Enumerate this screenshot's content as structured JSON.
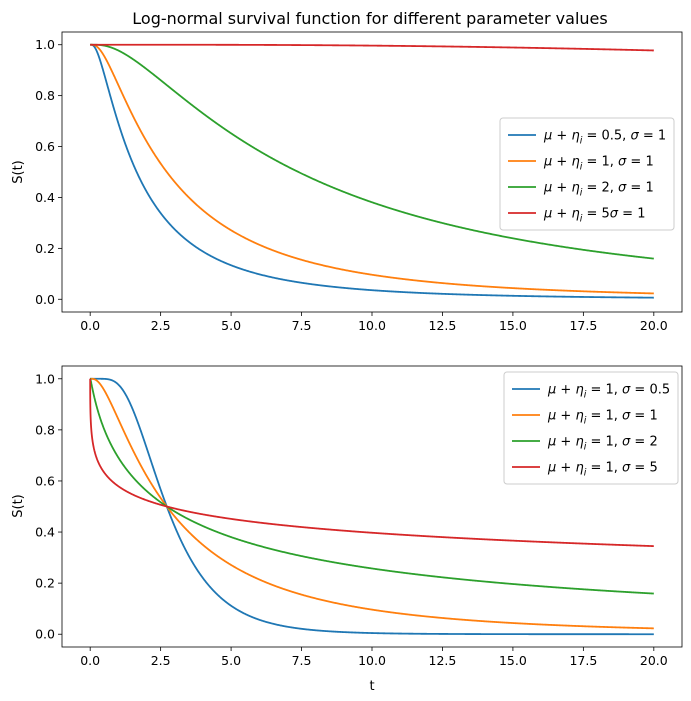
{
  "chart_data": [
    {
      "type": "line",
      "title": "Log-normal survival function for different parameter values",
      "xlabel": "",
      "ylabel": "S(t)",
      "xlim": [
        -1,
        21
      ],
      "ylim": [
        -0.05,
        1.05
      ],
      "xticks": [
        0,
        2.5,
        5,
        7.5,
        10,
        12.5,
        15,
        17.5,
        20
      ],
      "xtick_labels": [
        "0.0",
        "2.5",
        "5.0",
        "7.5",
        "10.0",
        "12.5",
        "15.0",
        "17.5",
        "20.0"
      ],
      "yticks": [
        0,
        0.2,
        0.4,
        0.6,
        0.8,
        1.0
      ],
      "ytick_labels": [
        "0.0",
        "0.2",
        "0.4",
        "0.6",
        "0.8",
        "1.0"
      ],
      "grid": false,
      "legend": "center-right",
      "series": [
        {
          "name": "μ + η_i = 0.5, σ = 1",
          "name_math": [
            "μ",
            " + ",
            "η",
            "i",
            " = 0.5, ",
            "σ",
            " = 1"
          ],
          "color": "#1f77b4",
          "mu": 0.5,
          "sigma": 1
        },
        {
          "name": "μ + η_i = 1, σ = 1",
          "name_math": [
            "μ",
            " + ",
            "η",
            "i",
            " = 1, ",
            "σ",
            " = 1"
          ],
          "color": "#ff7f0e",
          "mu": 1,
          "sigma": 1
        },
        {
          "name": "μ + η_i = 2, σ = 1",
          "name_math": [
            "μ",
            " + ",
            "η",
            "i",
            " = 2, ",
            "σ",
            " = 1"
          ],
          "color": "#2ca02c",
          "mu": 2,
          "sigma": 1
        },
        {
          "name": "μ + η_i = 5σ = 1",
          "name_math": [
            "μ",
            " + ",
            "η",
            "i",
            " = 5",
            "σ",
            " = 1"
          ],
          "color": "#d62728",
          "mu": 5,
          "sigma": 1
        }
      ]
    },
    {
      "type": "line",
      "title": "",
      "xlabel": "t",
      "ylabel": "S(t)",
      "xlim": [
        -1,
        21
      ],
      "ylim": [
        -0.05,
        1.05
      ],
      "xticks": [
        0,
        2.5,
        5,
        7.5,
        10,
        12.5,
        15,
        17.5,
        20
      ],
      "xtick_labels": [
        "0.0",
        "2.5",
        "5.0",
        "7.5",
        "10.0",
        "12.5",
        "15.0",
        "17.5",
        "20.0"
      ],
      "yticks": [
        0,
        0.2,
        0.4,
        0.6,
        0.8,
        1.0
      ],
      "ytick_labels": [
        "0.0",
        "0.2",
        "0.4",
        "0.6",
        "0.8",
        "1.0"
      ],
      "grid": false,
      "legend": "top-right",
      "series": [
        {
          "name": "μ + η_i = 1, σ = 0.5",
          "name_math": [
            "μ",
            " + ",
            "η",
            "i",
            " = 1, ",
            "σ",
            " = 0.5"
          ],
          "color": "#1f77b4",
          "mu": 1,
          "sigma": 0.5
        },
        {
          "name": "μ + η_i = 1, σ = 1",
          "name_math": [
            "μ",
            " + ",
            "η",
            "i",
            " = 1, ",
            "σ",
            " = 1"
          ],
          "color": "#ff7f0e",
          "mu": 1,
          "sigma": 1
        },
        {
          "name": "μ + η_i = 1, σ = 2",
          "name_math": [
            "μ",
            " + ",
            "η",
            "i",
            " = 1, ",
            "σ",
            " = 2"
          ],
          "color": "#2ca02c",
          "mu": 1,
          "sigma": 2
        },
        {
          "name": "μ + η_i = 1, σ = 5",
          "name_math": [
            "μ",
            " + ",
            "η",
            "i",
            " = 1, ",
            "σ",
            " = 5"
          ],
          "color": "#d62728",
          "mu": 1,
          "sigma": 5
        }
      ]
    }
  ]
}
